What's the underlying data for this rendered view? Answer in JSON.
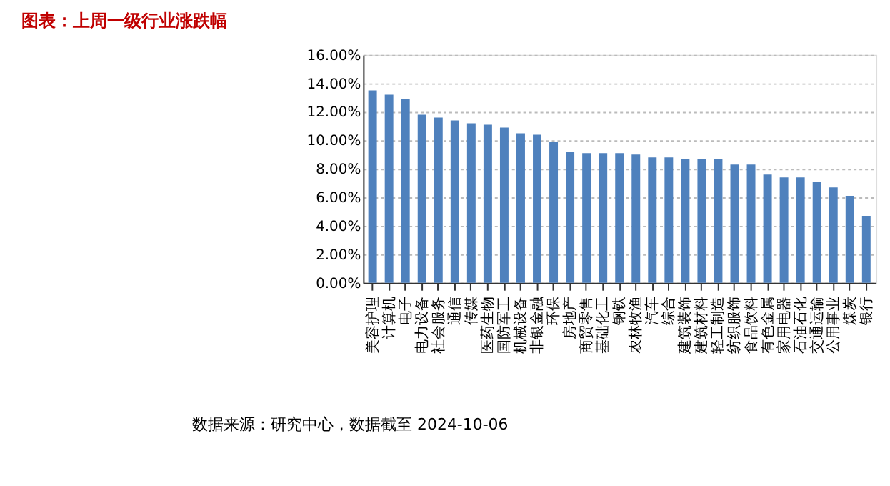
{
  "chart_data": {
    "type": "bar",
    "title": "图表：上周一级行业涨跌幅",
    "categories": [
      "美容护理",
      "计算机",
      "电子",
      "电力设备",
      "社会服务",
      "通信",
      "传媒",
      "医药生物",
      "国防军工",
      "机械设备",
      "非银金融",
      "环保",
      "房地产",
      "商贸零售",
      "基础化工",
      "钢铁",
      "农林牧渔",
      "汽车",
      "综合",
      "建筑装饰",
      "建筑材料",
      "轻工制造",
      "纺织服饰",
      "食品饮料",
      "有色金属",
      "家用电器",
      "石油石化",
      "交通运输",
      "公用事业",
      "煤炭",
      "银行"
    ],
    "values": [
      13.5,
      13.2,
      12.9,
      11.8,
      11.6,
      11.4,
      11.2,
      11.1,
      10.9,
      10.5,
      10.4,
      9.9,
      9.2,
      9.1,
      9.1,
      9.1,
      9.0,
      8.8,
      8.8,
      8.7,
      8.7,
      8.7,
      8.3,
      8.3,
      7.6,
      7.4,
      7.4,
      7.1,
      6.7,
      6.1,
      4.7
    ],
    "color": "#4f81bd",
    "ylim": [
      0,
      16
    ],
    "yticks": [
      {
        "value": 0,
        "label": "0.00%"
      },
      {
        "value": 2,
        "label": "2.00%"
      },
      {
        "value": 4,
        "label": "4.00%"
      },
      {
        "value": 6,
        "label": "6.00%"
      },
      {
        "value": 8,
        "label": "8.00%"
      },
      {
        "value": 10,
        "label": "10.00%"
      },
      {
        "value": 12,
        "label": "12.00%"
      },
      {
        "value": 14,
        "label": "14.00%"
      },
      {
        "value": 16,
        "label": "16.00%"
      }
    ],
    "grid": "y",
    "annotations": [
      "数据来源：研究中心，数据截至 2024-10-06"
    ]
  }
}
